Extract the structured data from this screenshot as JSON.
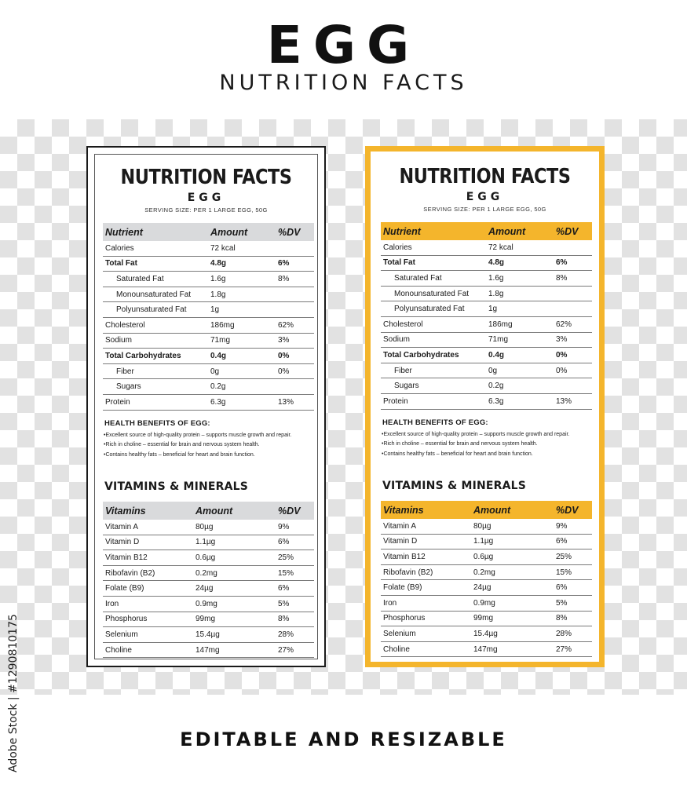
{
  "header": {
    "title": "EGG",
    "subtitle": "NUTRITION FACTS"
  },
  "panels": [
    {
      "title": "NUTRITION FACTS",
      "product": "EGG",
      "serving": "SERVING SIZE: PER 1 LARGE EGG, 50G",
      "table_header": {
        "nutrient": "Nutrient",
        "amount": "Amount",
        "dv": "%DV"
      },
      "nutrients": [
        {
          "name": "Calories",
          "amount": "72 kcal",
          "dv": ""
        },
        {
          "name": "Total Fat",
          "amount": "4.8g",
          "dv": "6%"
        },
        {
          "name": "Saturated Fat",
          "amount": "1.6g",
          "dv": "8%"
        },
        {
          "name": "Monounsaturated Fat",
          "amount": "1.8g",
          "dv": ""
        },
        {
          "name": "Polyunsaturated Fat",
          "amount": "1g",
          "dv": ""
        },
        {
          "name": "Cholesterol",
          "amount": "186mg",
          "dv": "62%"
        },
        {
          "name": "Sodium",
          "amount": "71mg",
          "dv": "3%"
        },
        {
          "name": "Total Carbohydrates",
          "amount": "0.4g",
          "dv": "0%"
        },
        {
          "name": "Fiber",
          "amount": "0g",
          "dv": "0%"
        },
        {
          "name": "Sugars",
          "amount": "0.2g",
          "dv": ""
        },
        {
          "name": "Protein",
          "amount": "6.3g",
          "dv": "13%"
        }
      ],
      "health_title": "HEALTH BENEFITS OF EGG:",
      "health_benefits": [
        "Excellent source of high-quality protein – supports muscle growth and repair.",
        "Rich in choline – essential for brain and nervous system health.",
        "Contains healthy fats – beneficial for heart and brain function."
      ],
      "vitamins_title": "VITAMINS & MINERALS",
      "vitamins_header": {
        "name": "Vitamins",
        "amount": "Amount",
        "dv": "%DV"
      },
      "vitamins": [
        {
          "name": "Vitamin A",
          "amount": "80µg",
          "dv": "9%"
        },
        {
          "name": "Vitamin D",
          "amount": "1.1µg",
          "dv": "6%"
        },
        {
          "name": "Vitamin B12",
          "amount": "0.6µg",
          "dv": "25%"
        },
        {
          "name": "Ribofavin (B2)",
          "amount": "0.2mg",
          "dv": "15%"
        },
        {
          "name": "Folate (B9)",
          "amount": "24µg",
          "dv": "6%"
        },
        {
          "name": "Iron",
          "amount": "0.9mg",
          "dv": "5%"
        },
        {
          "name": "Phosphorus",
          "amount": "99mg",
          "dv": "8%"
        },
        {
          "name": "Selenium",
          "amount": "15.4µg",
          "dv": "28%"
        },
        {
          "name": "Choline",
          "amount": "147mg",
          "dv": "27%"
        }
      ]
    },
    {
      "title": "NUTRITION FACTS",
      "product": "EGG",
      "serving": "SERVING SIZE: PER 1 LARGE EGG, 50G",
      "table_header": {
        "nutrient": "Nutrient",
        "amount": "Amount",
        "dv": "%DV"
      },
      "nutrients": [
        {
          "name": "Calories",
          "amount": "72 kcal",
          "dv": ""
        },
        {
          "name": "Total Fat",
          "amount": "4.8g",
          "dv": "6%"
        },
        {
          "name": "Saturated Fat",
          "amount": "1.6g",
          "dv": "8%"
        },
        {
          "name": "Monounsaturated Fat",
          "amount": "1.8g",
          "dv": ""
        },
        {
          "name": "Polyunsaturated Fat",
          "amount": "1g",
          "dv": ""
        },
        {
          "name": "Cholesterol",
          "amount": "186mg",
          "dv": "62%"
        },
        {
          "name": "Sodium",
          "amount": "71mg",
          "dv": "3%"
        },
        {
          "name": "Total Carbohydrates",
          "amount": "0.4g",
          "dv": "0%"
        },
        {
          "name": "Fiber",
          "amount": "0g",
          "dv": "0%"
        },
        {
          "name": "Sugars",
          "amount": "0.2g",
          "dv": ""
        },
        {
          "name": "Protein",
          "amount": "6.3g",
          "dv": "13%"
        }
      ],
      "health_title": "HEALTH BENEFITS OF EGG:",
      "health_benefits": [
        "Excellent source of high-quality protein – supports muscle growth and repair.",
        "Rich in choline – essential for brain and nervous system health.",
        "Contains healthy fats – beneficial for heart and brain function."
      ],
      "vitamins_title": "VITAMINS & MINERALS",
      "vitamins_header": {
        "name": "Vitamins",
        "amount": "Amount",
        "dv": "%DV"
      },
      "vitamins": [
        {
          "name": "Vitamin A",
          "amount": "80µg",
          "dv": "9%"
        },
        {
          "name": "Vitamin D",
          "amount": "1.1µg",
          "dv": "6%"
        },
        {
          "name": "Vitamin B12",
          "amount": "0.6µg",
          "dv": "25%"
        },
        {
          "name": "Ribofavin (B2)",
          "amount": "0.2mg",
          "dv": "15%"
        },
        {
          "name": "Folate (B9)",
          "amount": "24µg",
          "dv": "6%"
        },
        {
          "name": "Iron",
          "amount": "0.9mg",
          "dv": "5%"
        },
        {
          "name": "Phosphorus",
          "amount": "99mg",
          "dv": "8%"
        },
        {
          "name": "Selenium",
          "amount": "15.4µg",
          "dv": "28%"
        },
        {
          "name": "Choline",
          "amount": "147mg",
          "dv": "27%"
        }
      ]
    }
  ],
  "footer": "EDITABLE AND RESIZABLE",
  "credit": "Adobe Stock | #1290810175",
  "colors": {
    "accent": "#f4b52c",
    "plain_header": "#d9dadc",
    "text": "#1a1a1a"
  }
}
